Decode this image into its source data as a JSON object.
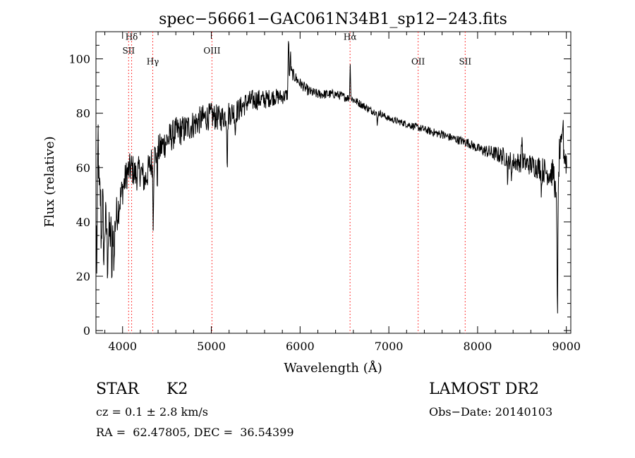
{
  "chart_data": {
    "type": "line",
    "title": "spec−56661−GAC061N34B1_sp12−243.fits",
    "xlabel": "Wavelength (Å)",
    "ylabel": "Flux (relative)",
    "xlim": [
      3700,
      9050
    ],
    "ylim": [
      -1,
      110
    ],
    "xticks": [
      4000,
      5000,
      6000,
      7000,
      8000,
      9000
    ],
    "yticks": [
      0,
      20,
      40,
      60,
      80,
      100
    ],
    "xtick_labels": [
      "4000",
      "5000",
      "6000",
      "7000",
      "8000",
      "9000"
    ],
    "ytick_labels": [
      "0",
      "20",
      "40",
      "60",
      "80",
      "100"
    ],
    "grid": false,
    "line_color": "#000000",
    "marker_color": "#ff0000",
    "line_markers": [
      {
        "label": "Hδ",
        "x": 4102,
        "label_y": 107
      },
      {
        "label": "SII",
        "x": 4068,
        "label_y": 102
      },
      {
        "label": "Hγ",
        "x": 4340,
        "label_y": 98
      },
      {
        "label": "OIII",
        "x": 5007,
        "label_y": 102
      },
      {
        "label": "Hα",
        "x": 6563,
        "label_y": 107
      },
      {
        "label": "OII",
        "x": 7330,
        "label_y": 98
      },
      {
        "label": "SII",
        "x": 7860,
        "label_y": 98
      }
    ],
    "anchors": [
      [
        3710,
        45
      ],
      [
        3750,
        50
      ],
      [
        3800,
        40
      ],
      [
        3850,
        35
      ],
      [
        3900,
        38
      ],
      [
        3950,
        45
      ],
      [
        4000,
        52
      ],
      [
        4050,
        58
      ],
      [
        4100,
        60
      ],
      [
        4150,
        57
      ],
      [
        4200,
        59
      ],
      [
        4250,
        55
      ],
      [
        4300,
        60
      ],
      [
        4350,
        64
      ],
      [
        4400,
        66
      ],
      [
        4500,
        70
      ],
      [
        4600,
        73
      ],
      [
        4700,
        74
      ],
      [
        4800,
        76
      ],
      [
        4900,
        78
      ],
      [
        5000,
        79
      ],
      [
        5100,
        78
      ],
      [
        5200,
        80
      ],
      [
        5300,
        81
      ],
      [
        5400,
        84
      ],
      [
        5500,
        85
      ],
      [
        5600,
        85
      ],
      [
        5700,
        86
      ],
      [
        5800,
        86
      ],
      [
        5870,
        87
      ],
      [
        5900,
        95
      ],
      [
        6000,
        91
      ],
      [
        6100,
        88
      ],
      [
        6200,
        87
      ],
      [
        6300,
        87
      ],
      [
        6400,
        87
      ],
      [
        6500,
        86
      ],
      [
        6600,
        85
      ],
      [
        6700,
        83
      ],
      [
        6800,
        81
      ],
      [
        6900,
        80
      ],
      [
        7000,
        78
      ],
      [
        7100,
        77
      ],
      [
        7200,
        76
      ],
      [
        7300,
        75
      ],
      [
        7400,
        74
      ],
      [
        7500,
        73
      ],
      [
        7600,
        72
      ],
      [
        7700,
        71
      ],
      [
        7800,
        70
      ],
      [
        7900,
        69
      ],
      [
        8000,
        67
      ],
      [
        8100,
        66
      ],
      [
        8200,
        65
      ],
      [
        8300,
        64
      ],
      [
        8400,
        62
      ],
      [
        8500,
        62
      ],
      [
        8600,
        61
      ],
      [
        8700,
        60
      ],
      [
        8800,
        58
      ],
      [
        8860,
        58
      ],
      [
        8900,
        40
      ],
      [
        8920,
        65
      ],
      [
        8960,
        68
      ],
      [
        9000,
        62
      ]
    ],
    "features": [
      [
        3710,
        -20
      ],
      [
        3725,
        25
      ],
      [
        3760,
        -15
      ],
      [
        3790,
        -18
      ],
      [
        3830,
        -12
      ],
      [
        3880,
        -18
      ],
      [
        3905,
        -15
      ],
      [
        4345,
        -22
      ],
      [
        4390,
        -10
      ],
      [
        5180,
        -18
      ],
      [
        5270,
        -8
      ],
      [
        5870,
        22
      ],
      [
        5890,
        10
      ],
      [
        6565,
        12
      ],
      [
        6870,
        -5
      ],
      [
        7600,
        2
      ],
      [
        8340,
        -8
      ],
      [
        8380,
        -6
      ],
      [
        8500,
        10
      ],
      [
        8720,
        -8
      ],
      [
        8900,
        -32
      ],
      [
        8960,
        10
      ]
    ],
    "noise": [
      [
        3700,
        12
      ],
      [
        4000,
        6
      ],
      [
        4400,
        6
      ],
      [
        5000,
        5
      ],
      [
        5500,
        4
      ],
      [
        6000,
        2
      ],
      [
        7000,
        1.2
      ],
      [
        8000,
        1.8
      ],
      [
        8300,
        3.5
      ],
      [
        8600,
        4
      ],
      [
        9000,
        6
      ]
    ],
    "x_start": 3705,
    "x_end": 9005,
    "x_step": 4
  },
  "info": {
    "object_type": "STAR",
    "subclass": "K2",
    "survey": "LAMOST DR2",
    "cz": "cz = 0.1 ± 2.8 km/s",
    "obs_date": "Obs−Date: 20140103",
    "coords": "RA =  62.47805, DEC =  36.54399"
  }
}
